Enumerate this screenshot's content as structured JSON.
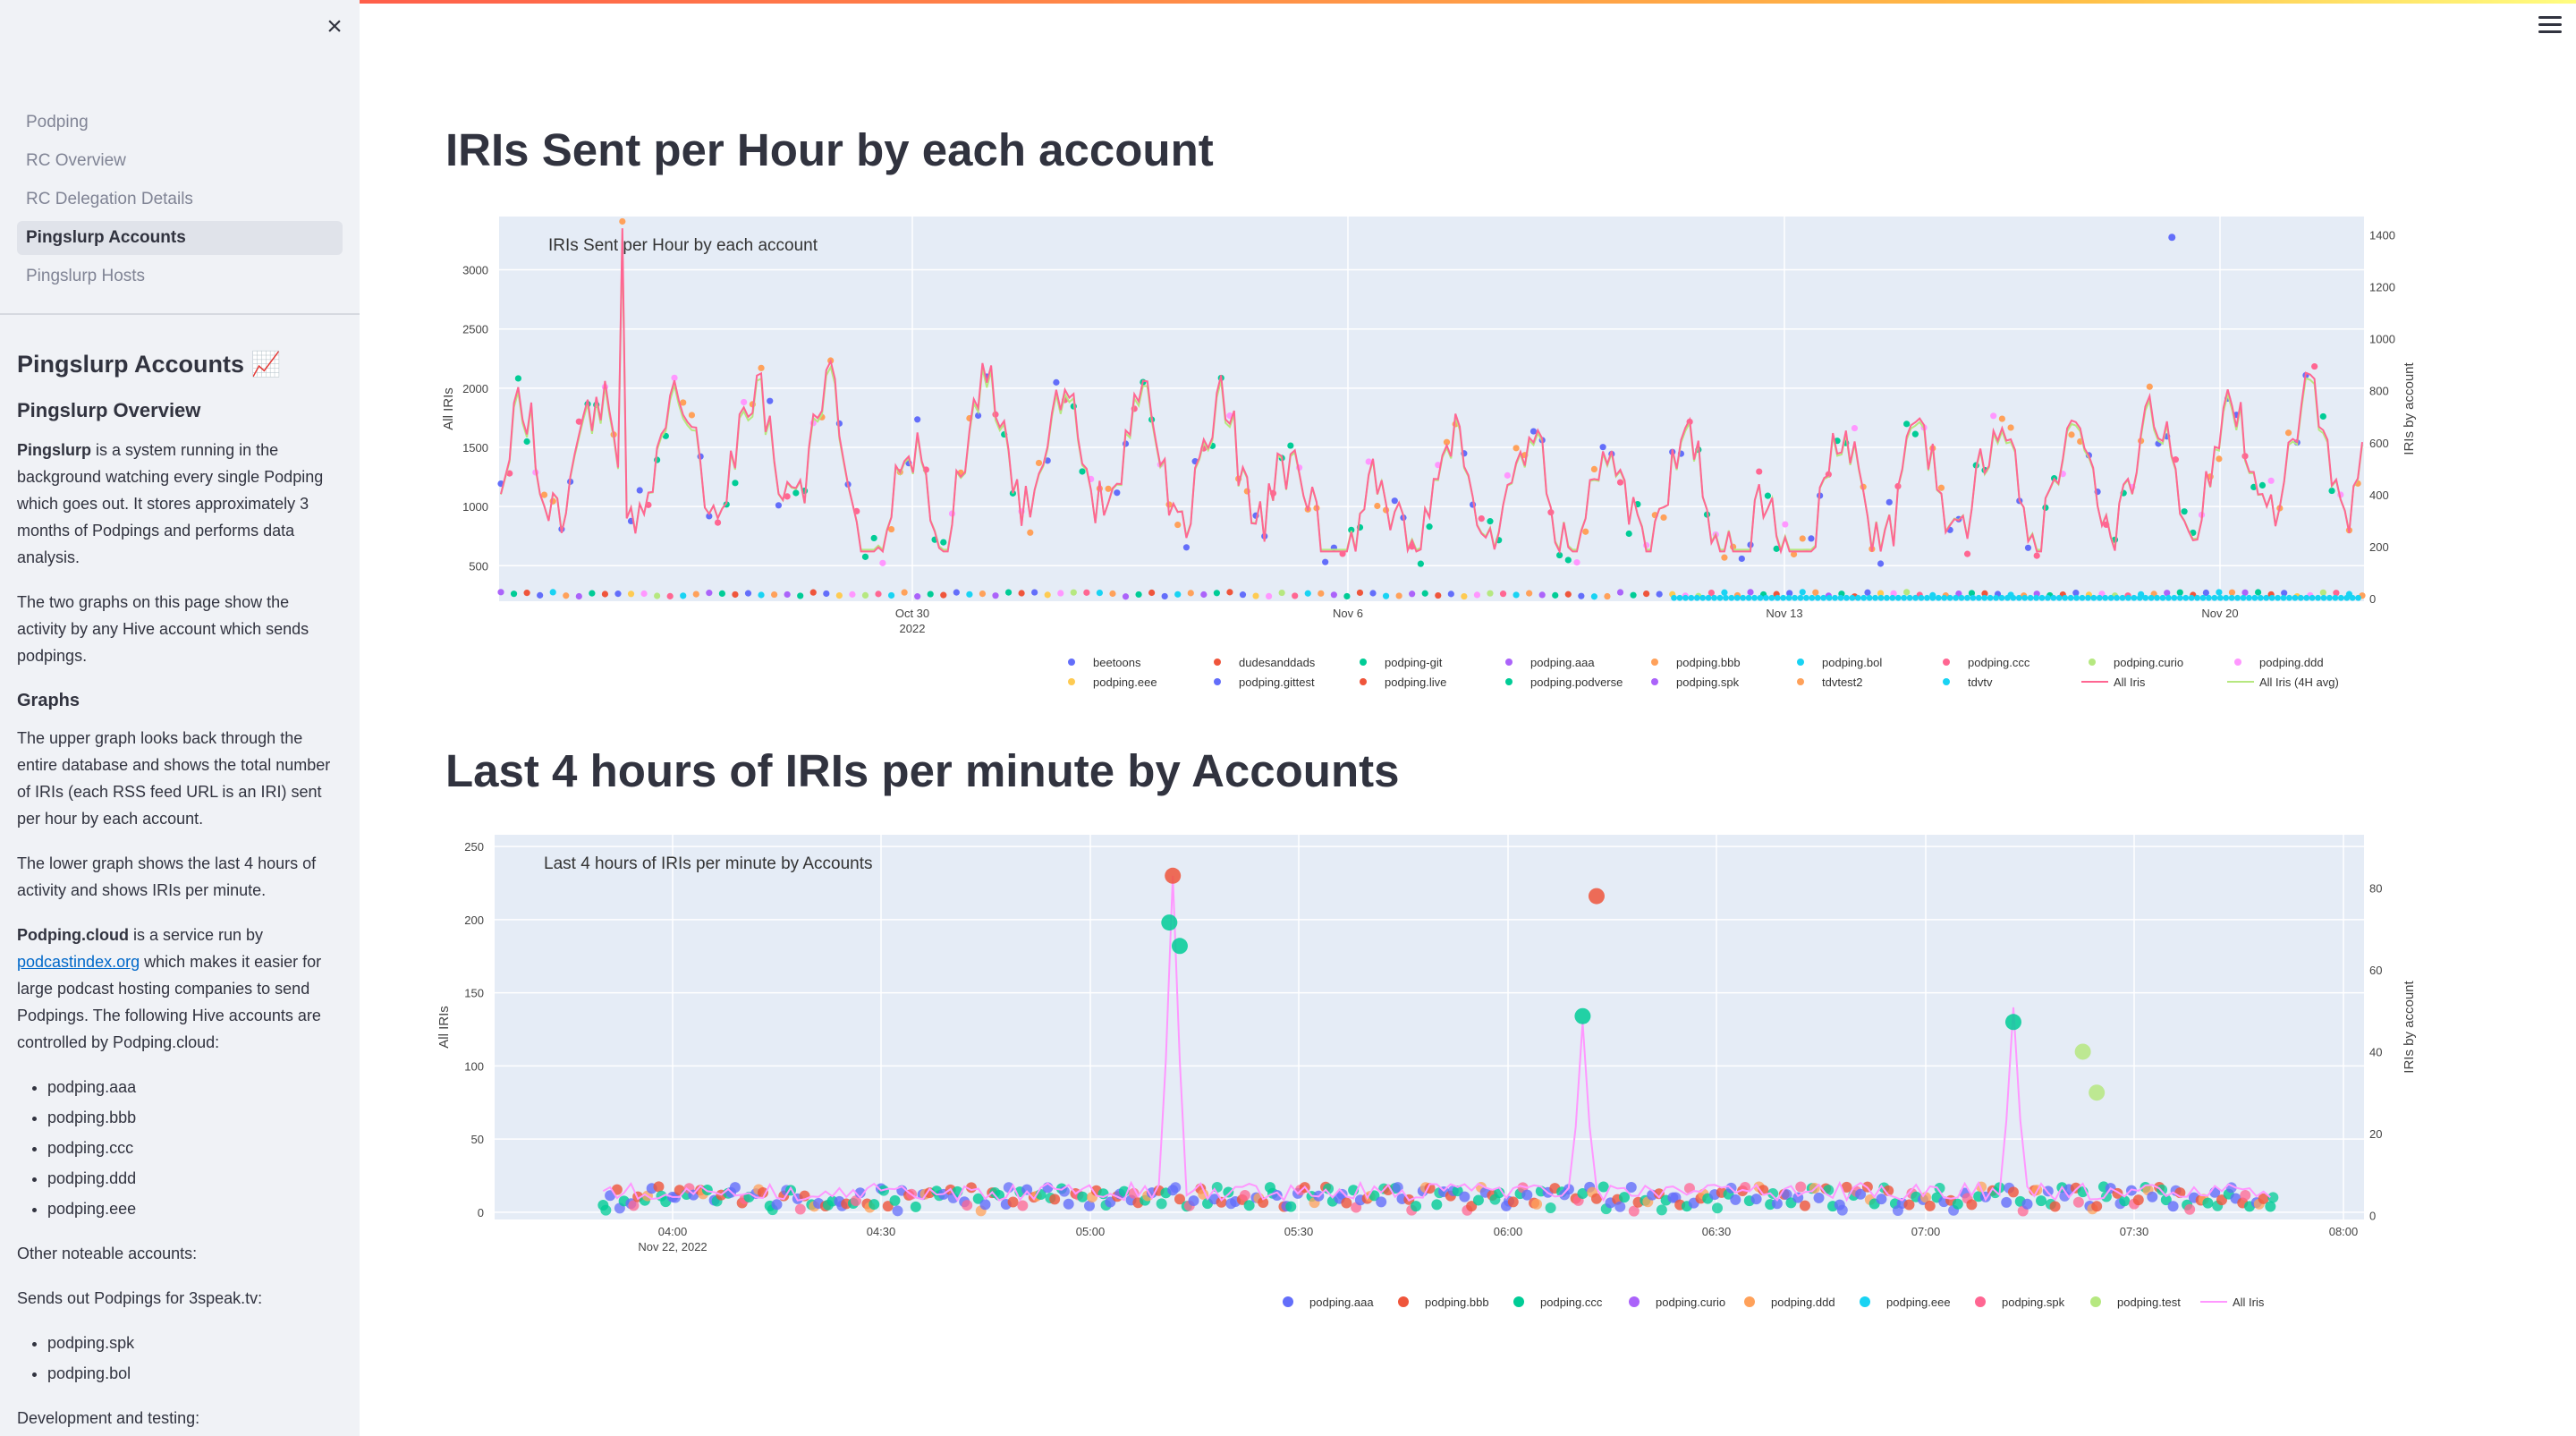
{
  "sidebar": {
    "nav": [
      "Podping",
      "RC Overview",
      "RC Delegation Details",
      "Pingslurp Accounts",
      "Pingslurp Hosts"
    ],
    "active_nav": "Pingslurp Accounts",
    "heading": "Pingslurp Accounts 📈",
    "overview_heading": "Pingslurp Overview",
    "p1_bold": "Pingslurp",
    "p1_rest": " is a system running in the background watching every single Podping which goes out. It stores approximately 3 months of Podpings and performs data analysis.",
    "p2": "The two graphs on this page show the activity by any Hive account which sends podpings.",
    "graphs_heading": "Graphs",
    "p3": "The upper graph looks back through the entire database and shows the total number of IRIs (each RSS feed URL is an IRI) sent per hour by each account.",
    "p4": "The lower graph shows the last 4 hours of activity and shows IRIs per minute.",
    "p5_bold": "Podping.cloud",
    "p5_mid": " is a service run by ",
    "p5_link": "podcastindex.org",
    "p5_rest": " which makes it easier for large podcast hosting companies to send Podpings. The following Hive accounts are controlled by Podping.cloud:",
    "cloud_accounts": [
      "podping.aaa",
      "podping.bbb",
      "podping.ccc",
      "podping.ddd",
      "podping.eee"
    ],
    "p6": "Other noteable accounts:",
    "p7": "Sends out Podpings for 3speak.tv:",
    "speak_accounts": [
      "podping.spk",
      "podping.bol"
    ],
    "p8": "Development and testing:"
  },
  "main": {
    "title1": "IRIs Sent per Hour by each account",
    "title2": "Last 4 hours of IRIs per minute by Accounts"
  },
  "colors": {
    "accent": "#ff4b4b",
    "plot_bg": "#e5ecf6",
    "link": "#0068c9"
  },
  "chart_data": [
    {
      "type": "scatter",
      "title": "IRIs Sent per Hour by each account",
      "xlabel": "",
      "ylabel": "All IRIs",
      "y2label": "IRIs by account",
      "ylim": [
        200,
        3450
      ],
      "y2lim": [
        -10,
        1470
      ],
      "yticks": [
        500,
        1000,
        1500,
        2000,
        2500,
        3000
      ],
      "y2ticks": [
        0,
        200,
        400,
        600,
        800,
        1000,
        1200,
        1400
      ],
      "x_ticks": [
        "Oct 30",
        "Nov 6",
        "Nov 13",
        "Nov 20"
      ],
      "x_sub_label": "2022",
      "legend": [
        {
          "name": "beetoons",
          "color": "#636efa",
          "kind": "marker"
        },
        {
          "name": "dudesanddads",
          "color": "#ef553b",
          "kind": "marker"
        },
        {
          "name": "podping-git",
          "color": "#00cc96",
          "kind": "marker"
        },
        {
          "name": "podping.aaa",
          "color": "#ab63fa",
          "kind": "marker"
        },
        {
          "name": "podping.bbb",
          "color": "#ffa15a",
          "kind": "marker"
        },
        {
          "name": "podping.bol",
          "color": "#19d3f3",
          "kind": "marker"
        },
        {
          "name": "podping.ccc",
          "color": "#ff6692",
          "kind": "marker"
        },
        {
          "name": "podping.curio",
          "color": "#b6e880",
          "kind": "marker"
        },
        {
          "name": "podping.ddd",
          "color": "#ff97ff",
          "kind": "marker"
        },
        {
          "name": "podping.eee",
          "color": "#fecb52",
          "kind": "marker"
        },
        {
          "name": "podping.gittest",
          "color": "#636efa",
          "kind": "marker"
        },
        {
          "name": "podping.live",
          "color": "#ef553b",
          "kind": "marker"
        },
        {
          "name": "podping.podverse",
          "color": "#00cc96",
          "kind": "marker"
        },
        {
          "name": "podping.spk",
          "color": "#ab63fa",
          "kind": "marker"
        },
        {
          "name": "tdvtest2",
          "color": "#ffa15a",
          "kind": "marker"
        },
        {
          "name": "tdvtv",
          "color": "#19d3f3",
          "kind": "marker"
        },
        {
          "name": "All Iris",
          "color": "#ff6692",
          "kind": "line"
        },
        {
          "name": "All Iris (4H avg)",
          "color": "#b6e880",
          "kind": "line"
        }
      ]
    },
    {
      "type": "scatter",
      "title": "Last 4 hours of IRIs per minute by Accounts",
      "xlabel": "",
      "ylabel": "All IRIs",
      "y2label": "IRIs by account",
      "ylim": [
        -5,
        258
      ],
      "y2lim": [
        -1,
        93
      ],
      "yticks": [
        0,
        50,
        100,
        150,
        200,
        250
      ],
      "y2ticks": [
        0,
        20,
        40,
        60,
        80
      ],
      "x_ticks": [
        "04:00",
        "04:30",
        "05:00",
        "05:30",
        "06:00",
        "06:30",
        "07:00",
        "07:30",
        "08:00"
      ],
      "x_sub_label": "Nov 22, 2022",
      "legend": [
        {
          "name": "podping.aaa",
          "color": "#636efa",
          "kind": "marker"
        },
        {
          "name": "podping.bbb",
          "color": "#ef553b",
          "kind": "marker"
        },
        {
          "name": "podping.ccc",
          "color": "#00cc96",
          "kind": "marker"
        },
        {
          "name": "podping.curio",
          "color": "#ab63fa",
          "kind": "marker"
        },
        {
          "name": "podping.ddd",
          "color": "#ffa15a",
          "kind": "marker"
        },
        {
          "name": "podping.eee",
          "color": "#19d3f3",
          "kind": "marker"
        },
        {
          "name": "podping.spk",
          "color": "#ff6692",
          "kind": "marker"
        },
        {
          "name": "podping.test",
          "color": "#b6e880",
          "kind": "marker"
        },
        {
          "name": "All Iris",
          "color": "#ff97ff",
          "kind": "line"
        }
      ],
      "peaks_all_iris": [
        {
          "time": "05:12",
          "value": 230
        },
        {
          "time": "06:11",
          "value": 130
        },
        {
          "time": "07:13",
          "value": 140
        }
      ]
    }
  ]
}
